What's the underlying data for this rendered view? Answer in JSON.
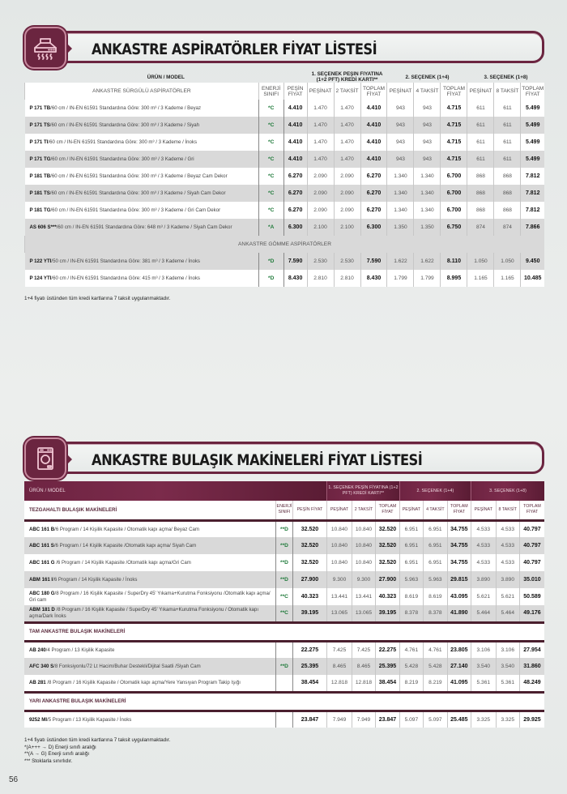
{
  "page_number": "56",
  "columns": {
    "product_model": "ÜRÜN / MODEL",
    "energy_class": "ENERJİ SINIFI",
    "cash_price": "PEŞİN FİYAT",
    "option1_group": "1. SEÇENEK PEŞİN FİYATINA (1+2 PFT) KREDİ KARTI**",
    "option2_group": "2. SEÇENEK (1+4)",
    "option3_group": "3. SEÇENEK (1+8)",
    "down_payment": "PEŞİNAT",
    "installment_2": "2 TAKSİT",
    "installment_4": "4 TAKSİT",
    "installment_8": "8 TAKSİT",
    "total_price": "TOPLAM FİYAT"
  },
  "hoods": {
    "title": "ANKASTRE ASPİRATÖRLER FİYAT LİSTESİ",
    "icon": "range-hood-icon",
    "categories": [
      {
        "name": "ANKASTRE SÜRGÜLÜ ASPİRATÖRLER",
        "rows": [
          {
            "model": "P 171 TB",
            "desc": "/60 cm / IN-EN 61591 Standardına Göre: 300 m³ / 3 Kademe / Beyaz",
            "energy": "*C",
            "cash": "4.410",
            "o1_down": "1.470",
            "o1_inst": "1.470",
            "o1_total": "4.410",
            "o2_down": "943",
            "o2_inst": "943",
            "o2_total": "4.715",
            "o3_down": "611",
            "o3_inst": "611",
            "o3_total": "5.499"
          },
          {
            "model": "P 171 TS",
            "desc": "/60 cm / IN-EN 61591 Standardına Göre: 300 m³ / 3 Kademe / Siyah",
            "energy": "*C",
            "cash": "4.410",
            "o1_down": "1.470",
            "o1_inst": "1.470",
            "o1_total": "4.410",
            "o2_down": "943",
            "o2_inst": "943",
            "o2_total": "4.715",
            "o3_down": "611",
            "o3_inst": "611",
            "o3_total": "5.499"
          },
          {
            "model": "P 171 TI",
            "desc": "/60 cm / IN-EN 61591 Standardına Göre: 300 m³ / 3 Kademe / İnoks",
            "energy": "*C",
            "cash": "4.410",
            "o1_down": "1.470",
            "o1_inst": "1.470",
            "o1_total": "4.410",
            "o2_down": "943",
            "o2_inst": "943",
            "o2_total": "4.715",
            "o3_down": "611",
            "o3_inst": "611",
            "o3_total": "5.499"
          },
          {
            "model": "P 171 TG",
            "desc": "/60 cm / IN-EN 61591 Standardına Göre: 300 m³ / 3 Kademe / Gri",
            "energy": "*C",
            "cash": "4.410",
            "o1_down": "1.470",
            "o1_inst": "1.470",
            "o1_total": "4.410",
            "o2_down": "943",
            "o2_inst": "943",
            "o2_total": "4.715",
            "o3_down": "611",
            "o3_inst": "611",
            "o3_total": "5.499"
          },
          {
            "model": "P 181 TB",
            "desc": "/60 cm / IN-EN 61591 Standardına Göre: 300 m³ / 3 Kademe / Beyaz Cam Dekor",
            "energy": "*C",
            "cash": "6.270",
            "o1_down": "2.090",
            "o1_inst": "2.090",
            "o1_total": "6.270",
            "o2_down": "1.340",
            "o2_inst": "1.340",
            "o2_total": "6.700",
            "o3_down": "868",
            "o3_inst": "868",
            "o3_total": "7.812"
          },
          {
            "model": "P 181 TS",
            "desc": "/60 cm / IN-EN 61591 Standardına Göre: 300 m³ / 3 Kademe / Siyah Cam Dekor",
            "energy": "*C",
            "cash": "6.270",
            "o1_down": "2.090",
            "o1_inst": "2.090",
            "o1_total": "6.270",
            "o2_down": "1.340",
            "o2_inst": "1.340",
            "o2_total": "6.700",
            "o3_down": "868",
            "o3_inst": "868",
            "o3_total": "7.812"
          },
          {
            "model": "P 181 TG",
            "desc": "/60 cm / IN-EN 61591 Standardına Göre: 300 m³ / 3 Kademe / Gri Cam Dekor",
            "energy": "*C",
            "cash": "6.270",
            "o1_down": "2.090",
            "o1_inst": "2.090",
            "o1_total": "6.270",
            "o2_down": "1.340",
            "o2_inst": "1.340",
            "o2_total": "6.700",
            "o3_down": "868",
            "o3_inst": "868",
            "o3_total": "7.812"
          },
          {
            "model": "AS 606 S***",
            "desc": "/60 cm / IN-EN 61591 Standardına Göre: 648 m³ / 3 Kademe / Siyah Cam Dekor",
            "energy": "*A",
            "cash": "6.300",
            "o1_down": "2.100",
            "o1_inst": "2.100",
            "o1_total": "6.300",
            "o2_down": "1.350",
            "o2_inst": "1.350",
            "o2_total": "6.750",
            "o3_down": "874",
            "o3_inst": "874",
            "o3_total": "7.866"
          }
        ]
      },
      {
        "name": "ANKASTRE GÖMME ASPİRATÖRLER",
        "rows": [
          {
            "model": "P 122 YTI",
            "desc": "/50 cm / IN-EN 61591 Standardına Göre: 381 m³ / 3 Kademe / İnoks",
            "energy": "*D",
            "cash": "7.590",
            "o1_down": "2.530",
            "o1_inst": "2.530",
            "o1_total": "7.590",
            "o2_down": "1.622",
            "o2_inst": "1.622",
            "o2_total": "8.110",
            "o3_down": "1.050",
            "o3_inst": "1.050",
            "o3_total": "9.450"
          },
          {
            "model": "P 124 YTI",
            "desc": "/60 cm / IN-EN 61591 Standardına Göre: 415 m³ / 3 Kademe / İnoks",
            "energy": "*D",
            "cash": "8.430",
            "o1_down": "2.810",
            "o1_inst": "2.810",
            "o1_total": "8.430",
            "o2_down": "1.799",
            "o2_inst": "1.799",
            "o2_total": "8.995",
            "o3_down": "1.165",
            "o3_inst": "1.165",
            "o3_total": "10.485"
          }
        ]
      }
    ],
    "footnote": "1+4 fiyatı üstünden tüm kredi kartlarına 7 taksit uygulanmaktadır."
  },
  "dishwashers": {
    "title": "ANKASTRE BULAŞIK MAKİNELERİ FİYAT LİSTESİ",
    "icon": "dishwasher-icon",
    "categories": [
      {
        "name": "TEZGAHALTI BULAŞIK MAKİNELERİ",
        "rows": [
          {
            "model": "ABC 161 B",
            "desc": "/6 Program / 14 Kişilik Kapasite / Otomatik kapı açma/ Beyaz Cam",
            "energy": "**D",
            "cash": "32.520",
            "o1_down": "10.840",
            "o1_inst": "10.840",
            "o1_total": "32.520",
            "o2_down": "6.951",
            "o2_inst": "6.951",
            "o2_total": "34.755",
            "o3_down": "4.533",
            "o3_inst": "4.533",
            "o3_total": "40.797"
          },
          {
            "model": "ABC 161 S",
            "desc": "/6 Program / 14 Kişilik Kapasite /Otomatik kapı açma/ Siyah Cam",
            "energy": "**D",
            "cash": "32.520",
            "o1_down": "10.840",
            "o1_inst": "10.840",
            "o1_total": "32.520",
            "o2_down": "6.951",
            "o2_inst": "6.951",
            "o2_total": "34.755",
            "o3_down": "4.533",
            "o3_inst": "4.533",
            "o3_total": "40.797"
          },
          {
            "model": "ABC 161 G",
            "desc": " /6 Program / 14 Kişilik Kapasite /Otomatik kapı açma/Gri Cam",
            "energy": "**D",
            "cash": "32.520",
            "o1_down": "10.840",
            "o1_inst": "10.840",
            "o1_total": "32.520",
            "o2_down": "6.951",
            "o2_inst": "6.951",
            "o2_total": "34.755",
            "o3_down": "4.533",
            "o3_inst": "4.533",
            "o3_total": "40.797"
          },
          {
            "model": "ABM 161 I",
            "desc": "/6 Program / 14 Kişilik Kapasite / İnoks",
            "energy": "**D",
            "cash": "27.900",
            "o1_down": "9.300",
            "o1_inst": "9.300",
            "o1_total": "27.900",
            "o2_down": "5.963",
            "o2_inst": "5.963",
            "o2_total": "29.815",
            "o3_down": "3.890",
            "o3_inst": "3.890",
            "o3_total": "35.010"
          },
          {
            "model": "ABC 180 G",
            "desc": "/8 Program / 16 Kişilik Kapasite / SuperDry 45' Yıkama+Kurutma Fonksiyonu /Otomatik kapı açma/ Gri cam",
            "energy": "**C",
            "cash": "40.323",
            "o1_down": "13.441",
            "o1_inst": "13.441",
            "o1_total": "40.323",
            "o2_down": "8.619",
            "o2_inst": "8.619",
            "o2_total": "43.095",
            "o3_down": "5.621",
            "o3_inst": "5.621",
            "o3_total": "50.589",
            "wrap": true
          },
          {
            "model": "ABM 181 D",
            "desc": " /8 Program / 16 Kişilik Kapasite / SuperDry 45' Yıkama+Kurutma Fonksiyonu / Otomatik kapı açma/Dark İnoks",
            "energy": "**C",
            "cash": "39.195",
            "o1_down": "13.065",
            "o1_inst": "13.065",
            "o1_total": "39.195",
            "o2_down": "8.378",
            "o2_inst": "8.378",
            "o2_total": "41.890",
            "o3_down": "5.464",
            "o3_inst": "5.464",
            "o3_total": "49.176",
            "wrap": true
          }
        ]
      },
      {
        "name": "TAM ANKASTRE BULAŞIK MAKİNELERİ",
        "rows": [
          {
            "model": "AB 240",
            "desc": "/4 Program / 13 Kişilik Kapasite",
            "energy": "",
            "cash": "22.275",
            "o1_down": "7.425",
            "o1_inst": "7.425",
            "o1_total": "22.275",
            "o2_down": "4.761",
            "o2_inst": "4.761",
            "o2_total": "23.805",
            "o3_down": "3.106",
            "o3_inst": "3.106",
            "o3_total": "27.954"
          },
          {
            "model": "AFC 340 S",
            "desc": "/8 Fonksiyonlu/72 Lt Hacim/Buhar Destekli/Dijital Saatli /Siyah Cam",
            "energy": "**D",
            "cash": "25.395",
            "o1_down": "8.465",
            "o1_inst": "8.465",
            "o1_total": "25.395",
            "o2_down": "5.428",
            "o2_inst": "5.428",
            "o2_total": "27.140",
            "o3_down": "3.540",
            "o3_inst": "3.540",
            "o3_total": "31.860"
          },
          {
            "model": "AB 281",
            "desc": " /8 Program / 16 Kişilik Kapasite / Otomatik kapı açma/Yere Yansıyan Program Takip Işığı",
            "energy": "",
            "cash": "38.454",
            "o1_down": "12.818",
            "o1_inst": "12.818",
            "o1_total": "38.454",
            "o2_down": "8.219",
            "o2_inst": "8.219",
            "o2_total": "41.095",
            "o3_down": "5.361",
            "o3_inst": "5.361",
            "o3_total": "48.249"
          }
        ]
      },
      {
        "name": "YARI ANKASTRE BULAŞIK MAKİNELERİ",
        "rows": [
          {
            "model": "9252 MI",
            "desc": "/5 Program / 13 Kişilik Kapasite / İnoks",
            "energy": "",
            "cash": "23.847",
            "o1_down": "7.949",
            "o1_inst": "7.949",
            "o1_total": "23.847",
            "o2_down": "5.097",
            "o2_inst": "5.097",
            "o2_total": "25.485",
            "o3_down": "3.325",
            "o3_inst": "3.325",
            "o3_total": "29.925"
          }
        ]
      }
    ],
    "footnotes": [
      "1+4 fiyatı üstünden tüm kredi kartlarına 7 taksit uygulanmaktadır.",
      "*(A+++ → D) Enerji sınıfı aralığı",
      "**(A → G) Enerji sınıfı aralığı",
      "*** Stoklarla sınırlıdır."
    ]
  },
  "colors": {
    "brand": "#6b2540",
    "header_bg": "#7b2b4b",
    "energy_green": "#1f7a3a",
    "row_alt": "#d9d9d9"
  }
}
